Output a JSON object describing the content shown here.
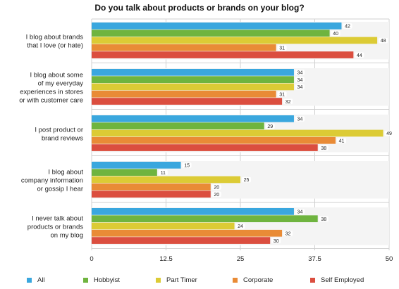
{
  "chart_data": {
    "type": "bar",
    "orientation": "horizontal",
    "title": "Do you talk about products or brands on your blog?",
    "xlabel": "",
    "ylabel": "",
    "xlim": [
      0,
      50
    ],
    "x_ticks": [
      "0",
      "12.5",
      "25",
      "37.5",
      "50"
    ],
    "grid": true,
    "legend_position": "bottom",
    "categories": [
      [
        "I blog about brands",
        "that I love (or hate)"
      ],
      [
        "I blog about some",
        "of my everyday",
        "experiences in stores",
        "or with customer care"
      ],
      [
        "I post product or",
        "brand reviews"
      ],
      [
        "I blog about",
        "company information",
        "or gossip I hear"
      ],
      [
        "I never talk about",
        "products or brands",
        "on my blog"
      ]
    ],
    "series": [
      {
        "name": "All",
        "color": "#3aa7de",
        "values": [
          42,
          34,
          34,
          15,
          34
        ]
      },
      {
        "name": "Hobbyist",
        "color": "#6fb43f",
        "values": [
          40,
          34,
          29,
          11,
          38
        ]
      },
      {
        "name": "Part Timer",
        "color": "#dccb35",
        "values": [
          48,
          34,
          49,
          25,
          24
        ]
      },
      {
        "name": "Corporate",
        "color": "#e98b36",
        "values": [
          31,
          31,
          41,
          20,
          32
        ]
      },
      {
        "name": "Self Employed",
        "color": "#db4e3f",
        "values": [
          44,
          32,
          38,
          20,
          30
        ]
      }
    ]
  }
}
